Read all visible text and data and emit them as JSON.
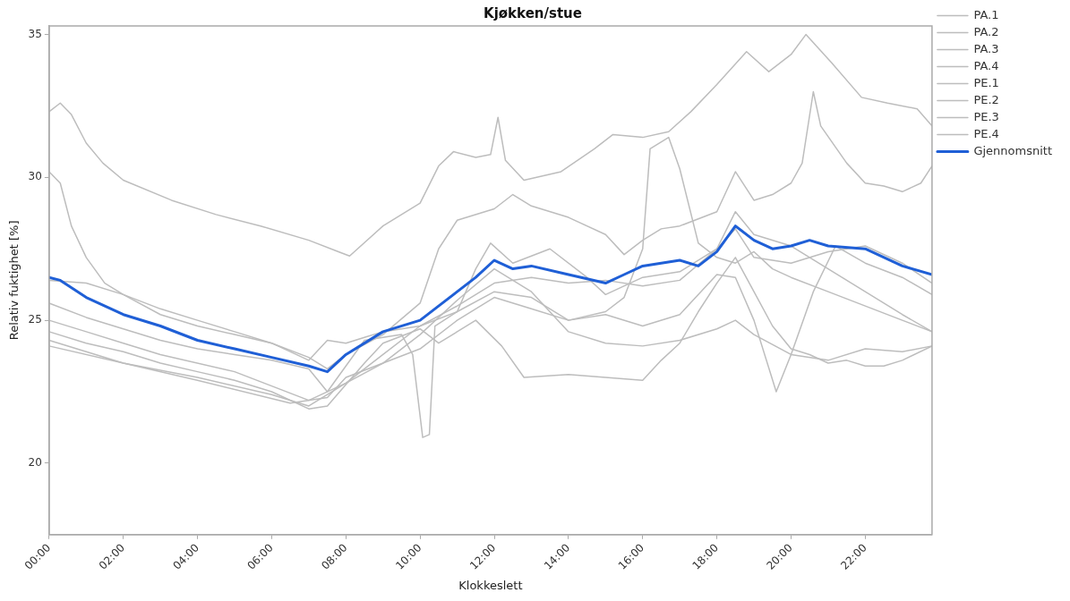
{
  "chart_data": {
    "type": "line",
    "title": "Kjøkken/stue",
    "xlabel": "Klokkeslett",
    "ylabel": "Relativ fuktighet [%]",
    "xlim": [
      0,
      23.8
    ],
    "ylim": [
      17.5,
      35.3
    ],
    "xticks": [
      {
        "value": 0,
        "label": "00:00"
      },
      {
        "value": 2,
        "label": "02:00"
      },
      {
        "value": 4,
        "label": "04:00"
      },
      {
        "value": 6,
        "label": "06:00"
      },
      {
        "value": 8,
        "label": "08:00"
      },
      {
        "value": 10,
        "label": "10:00"
      },
      {
        "value": 12,
        "label": "12:00"
      },
      {
        "value": 14,
        "label": "14:00"
      },
      {
        "value": 16,
        "label": "16:00"
      },
      {
        "value": 18,
        "label": "18:00"
      },
      {
        "value": 20,
        "label": "20:00"
      },
      {
        "value": 22,
        "label": "22:00"
      }
    ],
    "yticks": [
      20,
      25,
      30,
      35
    ],
    "grid": false,
    "legend": "right",
    "marker": "none",
    "line_style": "solid",
    "series": [
      {
        "name": "PA.1",
        "color": "#bdbdbd",
        "x": [
          0,
          0.3,
          0.6,
          1,
          1.45,
          2,
          3.3,
          4.5,
          5.7,
          7,
          7.8,
          8.1,
          9,
          10,
          10.5,
          10.9,
          11.5,
          11.9,
          12.1,
          12.3,
          12.8,
          13.8,
          14.7,
          15.2,
          16,
          16.7,
          17.3,
          18,
          18.8,
          19.4,
          20,
          20.4,
          21.1,
          21.9,
          22.6,
          23.4,
          23.8
        ],
        "values": [
          32.3,
          32.6,
          32.2,
          31.2,
          30.5,
          29.9,
          29.2,
          28.7,
          28.3,
          27.8,
          27.4,
          27.25,
          28.3,
          29.1,
          30.4,
          30.9,
          30.7,
          30.8,
          32.1,
          30.6,
          29.9,
          30.2,
          31.0,
          31.5,
          31.4,
          31.6,
          32.3,
          33.25,
          34.4,
          33.7,
          34.3,
          35.0,
          34.0,
          32.8,
          32.6,
          32.4,
          31.8
        ]
      },
      {
        "name": "PA.2",
        "color": "#bdbdbd",
        "x": [
          0,
          0.3,
          0.6,
          1,
          1.5,
          2,
          3,
          4,
          5,
          6,
          7,
          7.5,
          8,
          9,
          10,
          10.5,
          11,
          12,
          12.5,
          13,
          14,
          15,
          15.5,
          16,
          16.5,
          17,
          18,
          18.5,
          19,
          19.5,
          20,
          20.3,
          20.6,
          20.8,
          21.5,
          22,
          22.5,
          23,
          23.5,
          23.8
        ],
        "values": [
          30.2,
          29.8,
          28.3,
          27.2,
          26.3,
          25.9,
          25.2,
          24.8,
          24.5,
          24.2,
          23.7,
          23.3,
          23.8,
          24.5,
          25.6,
          27.5,
          28.5,
          28.9,
          29.4,
          29.0,
          28.6,
          28.0,
          27.3,
          27.8,
          28.2,
          28.3,
          28.8,
          30.2,
          29.2,
          29.4,
          29.8,
          30.5,
          33.0,
          31.8,
          30.5,
          29.8,
          29.7,
          29.5,
          29.8,
          30.4
        ]
      },
      {
        "name": "PA.3",
        "color": "#bdbdbd",
        "x": [
          0,
          1,
          2,
          3,
          4,
          5,
          6,
          7,
          7.5,
          8,
          8.5,
          9,
          10,
          11,
          12,
          13,
          14,
          15,
          15.5,
          16,
          16.2,
          16.7,
          17,
          17.5,
          18,
          18.5,
          19,
          19.5,
          20,
          21,
          22,
          23,
          23.8
        ],
        "values": [
          26.4,
          26.3,
          25.9,
          25.4,
          25.0,
          24.6,
          24.2,
          23.6,
          24.3,
          24.2,
          24.4,
          24.6,
          24.8,
          25.3,
          26.0,
          25.8,
          25.0,
          25.3,
          25.8,
          27.5,
          31.0,
          31.4,
          30.3,
          27.7,
          27.2,
          27.0,
          27.4,
          26.8,
          26.5,
          26.0,
          25.5,
          25.0,
          24.6
        ]
      },
      {
        "name": "PA.4",
        "color": "#bdbdbd",
        "x": [
          0,
          1,
          2,
          3,
          4,
          5,
          6,
          7,
          7.5,
          8.5,
          9.5,
          9.8,
          10.07,
          10.25,
          10.4,
          11,
          11.5,
          11.9,
          12.5,
          13.5,
          14.5,
          15,
          16,
          17,
          18,
          18.5,
          19,
          20,
          21,
          22,
          23,
          23.8
        ],
        "values": [
          25.6,
          25.1,
          24.7,
          24.3,
          24.0,
          23.8,
          23.6,
          23.3,
          22.5,
          24.3,
          24.5,
          23.8,
          20.9,
          21.0,
          24.8,
          25.3,
          26.8,
          27.7,
          27.0,
          27.5,
          26.5,
          25.9,
          26.5,
          26.7,
          27.5,
          28.2,
          27.2,
          27.0,
          27.4,
          27.6,
          27.0,
          26.3
        ]
      },
      {
        "name": "PE.1",
        "color": "#bdbdbd",
        "x": [
          0,
          1,
          2,
          3,
          4,
          5,
          6,
          7,
          7.5,
          8.5,
          9,
          10,
          10.5,
          11,
          11.5,
          12.2,
          12.8,
          14,
          15,
          16,
          16.5,
          17,
          17.5,
          18,
          18.5,
          19,
          19.5,
          20,
          20.5,
          21,
          21.5,
          22,
          22.5,
          23,
          23.8
        ],
        "values": [
          24.6,
          24.2,
          23.9,
          23.5,
          23.2,
          22.9,
          22.5,
          21.9,
          22.0,
          23.5,
          24.2,
          24.7,
          24.2,
          24.6,
          25.0,
          24.1,
          23.0,
          23.1,
          23.0,
          22.9,
          23.6,
          24.2,
          25.3,
          26.3,
          27.2,
          26.0,
          24.8,
          24.0,
          23.8,
          23.5,
          23.6,
          23.4,
          23.4,
          23.6,
          24.1
        ]
      },
      {
        "name": "PE.2",
        "color": "#bdbdbd",
        "x": [
          0,
          2,
          4,
          6.5,
          7.5,
          8,
          9,
          10,
          11,
          12,
          13,
          14,
          15,
          16,
          17,
          18,
          18.5,
          19,
          19.6,
          20,
          20.6,
          21.2,
          22,
          23,
          23.8
        ],
        "values": [
          24.3,
          23.5,
          22.9,
          22.1,
          22.3,
          23.0,
          23.5,
          24.0,
          25.0,
          25.8,
          25.4,
          25.0,
          25.2,
          24.8,
          25.2,
          26.6,
          26.5,
          25.0,
          22.5,
          23.8,
          26.0,
          27.6,
          27.0,
          26.5,
          25.9
        ]
      },
      {
        "name": "PE.3",
        "color": "#bdbdbd",
        "x": [
          0,
          1,
          2,
          3,
          5,
          7,
          8,
          9,
          10,
          11,
          12,
          13,
          14,
          15,
          16,
          17,
          18,
          18.5,
          19,
          20,
          21,
          22,
          23,
          23.8
        ],
        "values": [
          25.0,
          24.6,
          24.2,
          23.8,
          23.2,
          22.2,
          22.8,
          23.5,
          24.5,
          25.7,
          26.8,
          26.0,
          24.6,
          24.2,
          24.1,
          24.3,
          24.7,
          25.0,
          24.5,
          23.8,
          23.6,
          24.0,
          23.9,
          24.1
        ]
      },
      {
        "name": "PE.4",
        "color": "#bdbdbd",
        "x": [
          0,
          2,
          4,
          6,
          7,
          8,
          9,
          10,
          11,
          12,
          13,
          14,
          15,
          16,
          17,
          18,
          18.5,
          19,
          20,
          21,
          22,
          23,
          23.8
        ],
        "values": [
          24.1,
          23.5,
          23.0,
          22.4,
          22.0,
          22.8,
          23.8,
          24.8,
          25.5,
          26.3,
          26.5,
          26.3,
          26.4,
          26.2,
          26.4,
          27.5,
          28.8,
          28.0,
          27.6,
          26.8,
          26.0,
          25.2,
          24.6
        ]
      },
      {
        "name": "Gjennomsnitt",
        "color": "#1f5fd6",
        "x": [
          0,
          0.3,
          1,
          2,
          3,
          4,
          5,
          6,
          7,
          7.5,
          8,
          9,
          10,
          10.5,
          11,
          11.5,
          12,
          12.5,
          13,
          14,
          15,
          15.5,
          16,
          17,
          17.5,
          18,
          18.5,
          19,
          19.5,
          20,
          20.5,
          21,
          22,
          23,
          23.8
        ],
        "values": [
          26.5,
          26.4,
          25.8,
          25.2,
          24.8,
          24.3,
          24.0,
          23.7,
          23.4,
          23.2,
          23.8,
          24.6,
          25.0,
          25.5,
          26.0,
          26.5,
          27.1,
          26.8,
          26.9,
          26.6,
          26.3,
          26.6,
          26.9,
          27.1,
          26.9,
          27.4,
          28.3,
          27.8,
          27.5,
          27.6,
          27.8,
          27.6,
          27.5,
          26.9,
          26.6
        ]
      }
    ]
  }
}
